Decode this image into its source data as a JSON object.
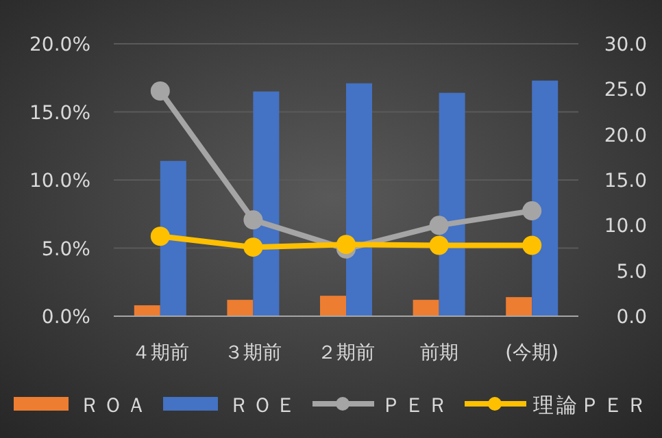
{
  "chart_data": {
    "type": "bar",
    "categories": [
      "４期前",
      "３期前",
      "２期前",
      "前期",
      "(今期)"
    ],
    "series": [
      {
        "name": "ＲＯＡ",
        "color": "#ed7d31",
        "values": [
          0.8,
          1.2,
          1.5,
          1.2,
          1.4
        ]
      },
      {
        "name": "ＲＯＥ",
        "color": "#4472c4",
        "values": [
          11.4,
          16.5,
          17.1,
          16.4,
          17.3
        ]
      },
      {
        "name": "ＰＥＲ",
        "type": "line",
        "axis": "y2",
        "color": "#a5a5a5",
        "values": [
          24.8,
          10.6,
          7.4,
          10.0,
          11.6
        ]
      },
      {
        "name": "理論ＰＥＲ",
        "type": "line",
        "axis": "y2",
        "color": "#ffc000",
        "values": [
          8.8,
          7.6,
          7.9,
          7.8,
          7.8
        ]
      }
    ],
    "ylim": [
      0,
      20
    ],
    "yticks": [
      {
        "value": 0,
        "label": "0.0%"
      },
      {
        "value": 5,
        "label": "5.0%"
      },
      {
        "value": 10,
        "label": "10.0%"
      },
      {
        "value": 15,
        "label": "15.0%"
      },
      {
        "value": 20,
        "label": "20.0%"
      }
    ],
    "y2lim": [
      0,
      30
    ],
    "y2ticks": [
      {
        "value": 0,
        "label": "0.0"
      },
      {
        "value": 5,
        "label": "5.0"
      },
      {
        "value": 10,
        "label": "10.0"
      },
      {
        "value": 15,
        "label": "15.0"
      },
      {
        "value": 20,
        "label": "20.0"
      },
      {
        "value": 25,
        "label": "25.0"
      },
      {
        "value": 30,
        "label": "30.0"
      }
    ],
    "grid": "y",
    "marker": "circle",
    "legend": "bottom"
  }
}
